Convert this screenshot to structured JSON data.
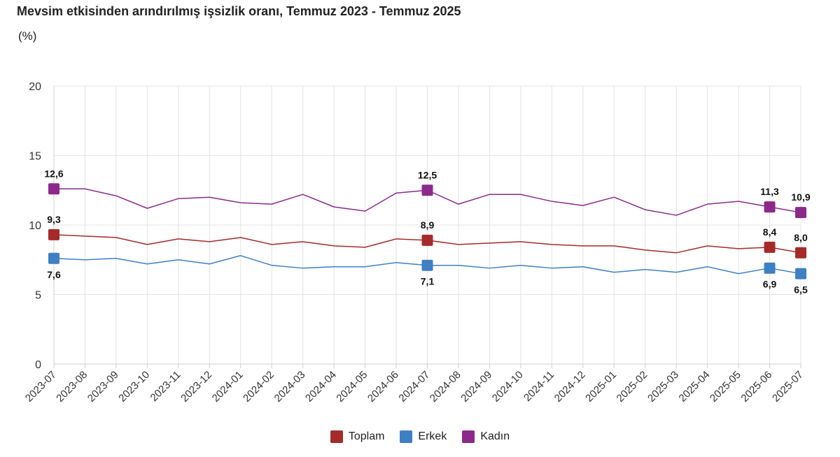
{
  "chart_data": {
    "type": "line",
    "title": "Mevsim etkisinden arındırılmış işsizlik oranı, Temmuz 2023 - Temmuz 2025",
    "subtitle": "(%)",
    "categories": [
      "2023-07",
      "2023-08",
      "2023-09",
      "2023-10",
      "2023-11",
      "2023-12",
      "2024-01",
      "2024-02",
      "2024-03",
      "2024-04",
      "2024-05",
      "2024-06",
      "2024-07",
      "2024-08",
      "2024-09",
      "2024-10",
      "2024-11",
      "2024-12",
      "2025-01",
      "2025-02",
      "2025-03",
      "2025-04",
      "2025-05",
      "2025-06",
      "2025-07"
    ],
    "ylim": [
      0,
      20
    ],
    "yticks": [
      0,
      5,
      10,
      15,
      20
    ],
    "grid": true,
    "legend_position": "bottom-center",
    "series": [
      {
        "name": "Toplam",
        "color": "#a52a2a",
        "values": [
          9.3,
          9.2,
          9.1,
          8.6,
          9.0,
          8.8,
          9.1,
          8.6,
          8.8,
          8.5,
          8.4,
          9.0,
          8.9,
          8.6,
          8.7,
          8.8,
          8.6,
          8.5,
          8.5,
          8.2,
          8.0,
          8.5,
          8.3,
          8.4,
          8.0
        ],
        "labels": [
          {
            "i": 0,
            "text": "9,3"
          },
          {
            "i": 12,
            "text": "8,9"
          },
          {
            "i": 23,
            "text": "8,4"
          },
          {
            "i": 24,
            "text": "8,0"
          }
        ],
        "label_side": "above"
      },
      {
        "name": "Erkek",
        "color": "#3f7fc4",
        "values": [
          7.6,
          7.5,
          7.6,
          7.2,
          7.5,
          7.2,
          7.8,
          7.1,
          6.9,
          7.0,
          7.0,
          7.3,
          7.1,
          7.1,
          6.9,
          7.1,
          6.9,
          7.0,
          6.6,
          6.8,
          6.6,
          7.0,
          6.5,
          6.9,
          6.5
        ],
        "labels": [
          {
            "i": 0,
            "text": "7,6"
          },
          {
            "i": 12,
            "text": "7,1"
          },
          {
            "i": 23,
            "text": "6,9"
          },
          {
            "i": 24,
            "text": "6,5"
          }
        ],
        "label_side": "below"
      },
      {
        "name": "Kadın",
        "color": "#8b2a8b",
        "values": [
          12.6,
          12.6,
          12.1,
          11.2,
          11.9,
          12.0,
          11.6,
          11.5,
          12.2,
          11.3,
          11.0,
          12.3,
          12.5,
          11.5,
          12.2,
          12.2,
          11.7,
          11.4,
          12.0,
          11.1,
          10.7,
          11.5,
          11.7,
          11.3,
          10.9
        ],
        "labels": [
          {
            "i": 0,
            "text": "12,6"
          },
          {
            "i": 12,
            "text": "12,5"
          },
          {
            "i": 23,
            "text": "11,3"
          },
          {
            "i": 24,
            "text": "10,9"
          }
        ],
        "label_side": "above"
      }
    ]
  }
}
